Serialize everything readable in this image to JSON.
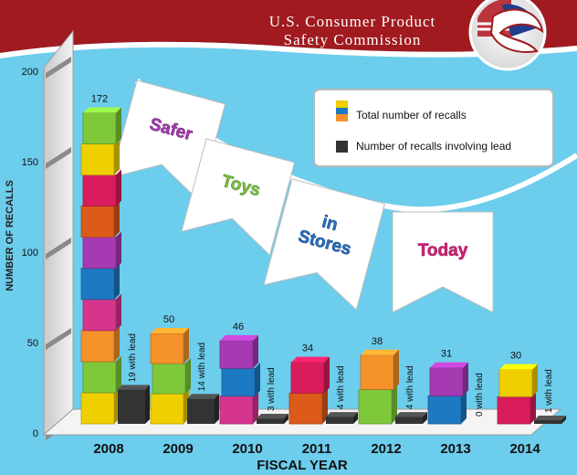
{
  "header": {
    "org_line1": "U.S. Consumer Product",
    "org_line2": "Safety Commission"
  },
  "banner": {
    "flags": [
      "Safer",
      "Toys",
      "in Stores",
      "Today"
    ],
    "flag_colors": [
      "#a63ab3",
      "#7bc242",
      "#2a6fbf",
      "#d6217a"
    ]
  },
  "colors": {
    "background": "#6ccdec",
    "header": "#a01a1f",
    "lead_block": "#333333",
    "block_palette": [
      "#f0cf00",
      "#7ec83a",
      "#f5922a",
      "#d6358d",
      "#1d79c2",
      "#a63ab3",
      "#dc5a1a",
      "#d91d5c"
    ]
  },
  "chart_data": {
    "type": "bar",
    "title": "",
    "xlabel": "FISCAL YEAR",
    "ylabel": "NUMBER OF RECALLS",
    "ylim": [
      0,
      200
    ],
    "yticks": [
      0,
      50,
      100,
      150,
      200
    ],
    "categories": [
      "2008",
      "2009",
      "2010",
      "2011",
      "2012",
      "2013",
      "2014"
    ],
    "series": [
      {
        "name": "Total number of recalls",
        "values": [
          172,
          50,
          46,
          34,
          38,
          31,
          30
        ]
      },
      {
        "name": "Number of recalls involving lead",
        "values": [
          19,
          14,
          3,
          4,
          4,
          0,
          1
        ]
      }
    ],
    "total_labels": [
      "172",
      "50",
      "46",
      "34",
      "38",
      "31",
      "30"
    ],
    "lead_labels": [
      "19 with lead",
      "14 with lead",
      "3 with lead",
      "4 with lead",
      "4 with lead",
      "0 with lead",
      "1 with lead"
    ],
    "legend": {
      "placement": "top-right",
      "entries": [
        "Total number of recalls",
        "Number of recalls involving lead"
      ]
    },
    "grid": false
  }
}
